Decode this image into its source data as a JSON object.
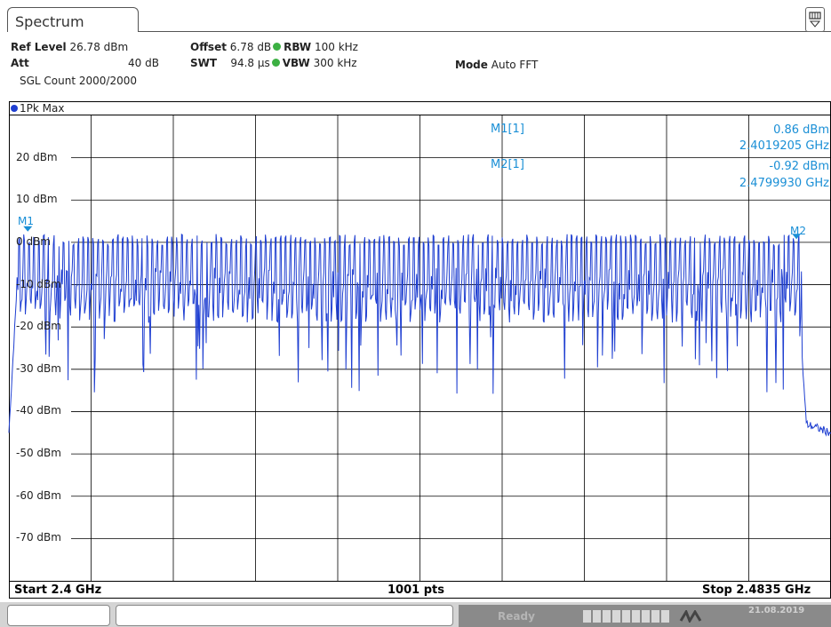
{
  "tab": {
    "label": "Spectrum"
  },
  "settings": {
    "ref_level_label": "Ref Level",
    "ref_level_value": "26.78 dBm",
    "offset_label": "Offset",
    "offset_value": "6.78 dB",
    "rbw_label": "RBW",
    "rbw_value": "100 kHz",
    "att_label": "Att",
    "att_value": "40 dB",
    "swt_label": "SWT",
    "swt_value": "94.8 µs",
    "vbw_label": "VBW",
    "vbw_value": "300 kHz",
    "mode_label": "Mode",
    "mode_value": "Auto FFT",
    "sgl_count": "SGL Count 2000/2000"
  },
  "trace_label": "1Pk Max",
  "markers": [
    {
      "label": "M1[1]",
      "level": "0.86 dBm",
      "freq": "2.4019205 GHz"
    },
    {
      "label": "M2[1]",
      "level": "-0.92 dBm",
      "freq": "2.4799930 GHz"
    }
  ],
  "marker_tags": [
    "M1",
    "M2"
  ],
  "y_labels": [
    "20 dBm",
    "10 dBm",
    "0 dBm",
    "-10 dBm",
    "-20 dBm",
    "-30 dBm",
    "-40 dBm",
    "-50 dBm",
    "-60 dBm",
    "-70 dBm"
  ],
  "footer": {
    "start": "Start 2.4 GHz",
    "points": "1001 pts",
    "stop": "Stop 2.4835 GHz"
  },
  "status": {
    "ready": "Ready",
    "date": "21.08.2019"
  },
  "colors": {
    "trace": "#1f3fd1",
    "marker_text": "#1a8fd6",
    "led": "#3cb043"
  },
  "icons": [
    "settings-menu-icon"
  ],
  "chart_data": {
    "type": "line",
    "xlabel": "",
    "ylabel": "",
    "x_range_ghz": [
      2.4,
      2.4835
    ],
    "ylim_dbm": [
      -80,
      30
    ],
    "points": 1001,
    "markers": [
      {
        "x_ghz": 2.4019205,
        "y_dbm": 0.86
      },
      {
        "x_ghz": 2.479993,
        "y_dbm": -0.92
      }
    ],
    "series": [
      {
        "values_note_x_ghz": [
          2.4,
          2.401,
          2.402,
          2.405,
          2.41,
          2.415,
          2.42,
          2.43,
          2.44,
          2.45,
          2.46,
          2.47,
          2.478,
          2.48,
          2.4805,
          2.481,
          2.4835
        ],
        "y_dbm": [
          -45,
          -3,
          1,
          -12,
          -8,
          -10,
          -5,
          -8,
          -9,
          -8,
          -10,
          -7,
          -4,
          -1,
          -25,
          -43,
          -45
        ]
      }
    ]
  }
}
